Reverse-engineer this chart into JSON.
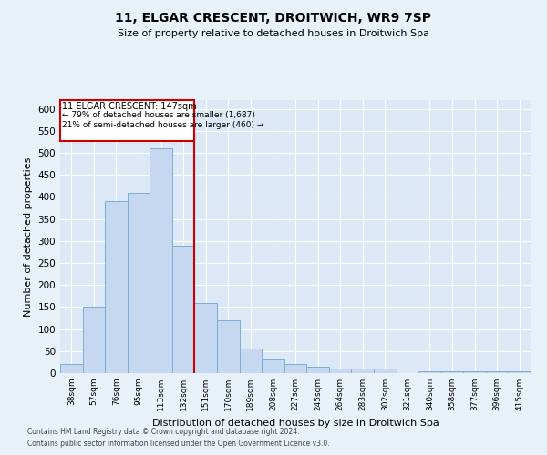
{
  "title": "11, ELGAR CRESCENT, DROITWICH, WR9 7SP",
  "subtitle": "Size of property relative to detached houses in Droitwich Spa",
  "xlabel": "Distribution of detached houses by size in Droitwich Spa",
  "ylabel": "Number of detached properties",
  "bar_labels": [
    "38sqm",
    "57sqm",
    "76sqm",
    "95sqm",
    "113sqm",
    "132sqm",
    "151sqm",
    "170sqm",
    "189sqm",
    "208sqm",
    "227sqm",
    "245sqm",
    "264sqm",
    "283sqm",
    "302sqm",
    "321sqm",
    "340sqm",
    "358sqm",
    "377sqm",
    "396sqm",
    "415sqm"
  ],
  "bar_values": [
    20,
    150,
    390,
    410,
    510,
    290,
    160,
    120,
    55,
    30,
    20,
    15,
    10,
    10,
    10,
    0,
    5,
    5,
    5,
    5,
    5
  ],
  "bar_color": "#c5d8ef",
  "bar_edgecolor": "#7badd4",
  "vline_index": 5,
  "vline_color": "#cc0000",
  "annotation_box_color": "#cc0000",
  "annotation_line1": "11 ELGAR CRESCENT: 147sqm",
  "annotation_line2": "← 79% of detached houses are smaller (1,687)",
  "annotation_line3": "21% of semi-detached houses are larger (460) →",
  "ylim": [
    0,
    620
  ],
  "yticks": [
    0,
    50,
    100,
    150,
    200,
    250,
    300,
    350,
    400,
    450,
    500,
    550,
    600
  ],
  "footer_line1": "Contains HM Land Registry data © Crown copyright and database right 2024.",
  "footer_line2": "Contains public sector information licensed under the Open Government Licence v3.0.",
  "background_color": "#e8f0f8",
  "plot_bg_color": "#dce8f5"
}
